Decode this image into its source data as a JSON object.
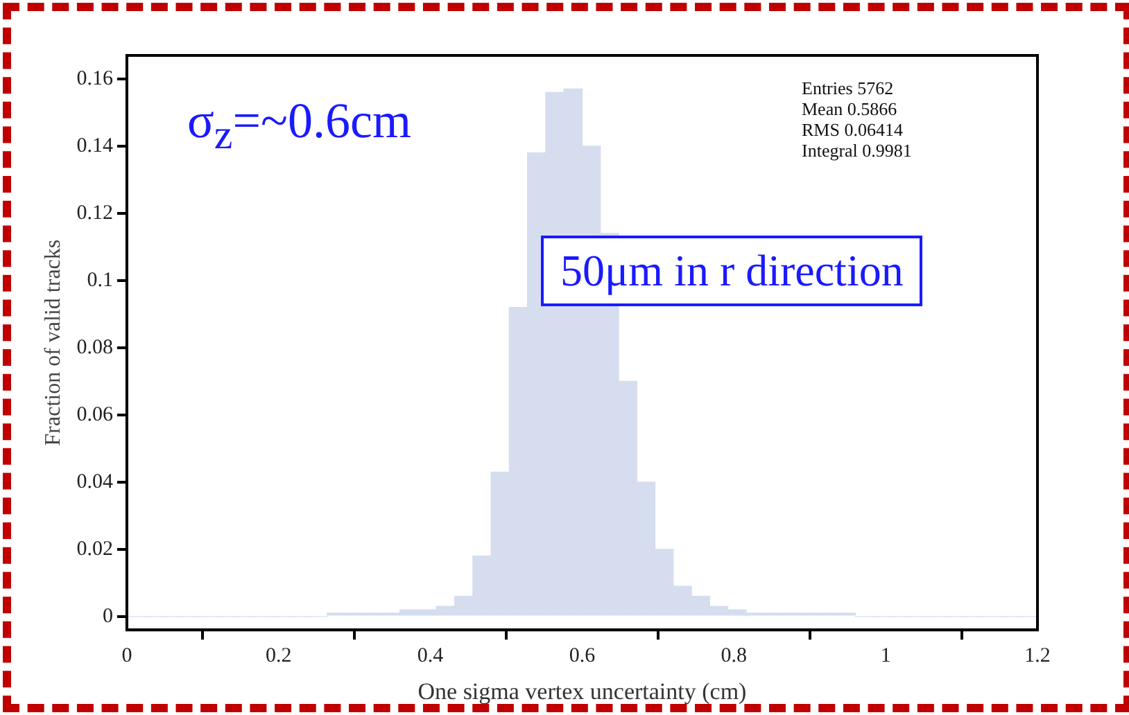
{
  "chart_data": {
    "type": "histogram",
    "xlabel": "One sigma vertex uncertainty (cm)",
    "ylabel": "Fraction of valid tracks",
    "bins": [
      0,
      0.024,
      0.048,
      0.072,
      0.096,
      0.12,
      0.144,
      0.168,
      0.192,
      0.216,
      0.24,
      0.264,
      0.288,
      0.312,
      0.336,
      0.36,
      0.384,
      0.408,
      0.432,
      0.456,
      0.48,
      0.504,
      0.528,
      0.552,
      0.576,
      0.6,
      0.624,
      0.648,
      0.672,
      0.696,
      0.72,
      0.744,
      0.768,
      0.792,
      0.816,
      0.84,
      0.864,
      0.888,
      0.912,
      0.936,
      0.96,
      0.984,
      1.008,
      1.032,
      1.056,
      1.08,
      1.104,
      1.128,
      1.152,
      1.176,
      1.2
    ],
    "values": [
      0,
      0,
      0,
      0,
      0,
      0,
      0,
      0,
      0,
      0,
      0,
      0.001,
      0.001,
      0.001,
      0.001,
      0.002,
      0.002,
      0.003,
      0.006,
      0.018,
      0.043,
      0.092,
      0.138,
      0.156,
      0.157,
      0.14,
      0.114,
      0.07,
      0.04,
      0.02,
      0.009,
      0.006,
      0.003,
      0.002,
      0.001,
      0.001,
      0.001,
      0.001,
      0.001,
      0.001,
      0,
      0,
      0,
      0,
      0,
      0,
      0,
      0,
      0,
      0
    ],
    "color": "#d5ddef",
    "xlim": [
      0,
      1.2
    ],
    "xticks": [
      0,
      0.2,
      0.4,
      0.6,
      0.8,
      1,
      1.2
    ],
    "ylim": [
      -0.004,
      0.167
    ],
    "yticks": [
      0,
      0.02,
      0.04,
      0.06,
      0.08,
      {
        "value": 0.1,
        "label": "0.1"
      },
      0.12,
      0.14,
      0.16
    ],
    "grid": false,
    "legend": false,
    "annotations": [
      "σ$_{z}$=~0.6cm",
      "50μm in r direction",
      "Entries 5762",
      "Mean 0.5866",
      "RMS 0.06414",
      "Integral 0.9981"
    ]
  }
}
